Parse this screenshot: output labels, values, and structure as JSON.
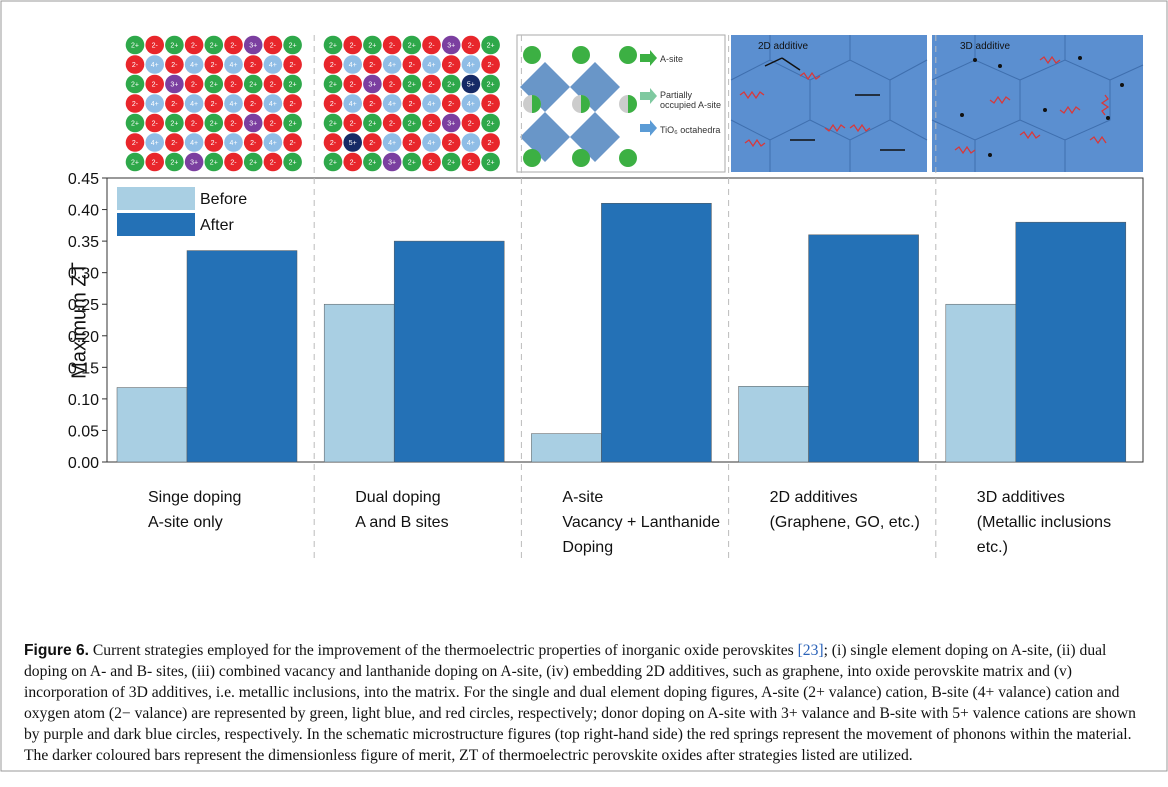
{
  "figure": {
    "lattices": [
      {
        "rows": [
          [
            "2+",
            "2-",
            "2+",
            "2-",
            "2+",
            "2-",
            "3+",
            "2-",
            "2+"
          ],
          [
            "2-",
            "4+",
            "2-",
            "4+",
            "2-",
            "4+",
            "2-",
            "4+",
            "2-"
          ],
          [
            "2+",
            "2-",
            "3+",
            "2-",
            "2+",
            "2-",
            "2+",
            "2-",
            "2+"
          ],
          [
            "2-",
            "4+",
            "2-",
            "4+",
            "2-",
            "4+",
            "2-",
            "4+",
            "2-"
          ],
          [
            "2+",
            "2-",
            "2+",
            "2-",
            "2+",
            "2-",
            "3+",
            "2-",
            "2+"
          ],
          [
            "2-",
            "4+",
            "2-",
            "4+",
            "2-",
            "4+",
            "2-",
            "4+",
            "2-"
          ],
          [
            "2+",
            "2-",
            "2+",
            "3+",
            "2+",
            "2-",
            "2+",
            "2-",
            "2+"
          ]
        ]
      },
      {
        "rows": [
          [
            "2+",
            "2-",
            "2+",
            "2-",
            "2+",
            "2-",
            "3+",
            "2-",
            "2+"
          ],
          [
            "2-",
            "4+",
            "2-",
            "4+",
            "2-",
            "4+",
            "2-",
            "4+",
            "2-"
          ],
          [
            "2+",
            "2-",
            "3+",
            "2-",
            "2+",
            "2-",
            "2+",
            "5+",
            "2+"
          ],
          [
            "2-",
            "4+",
            "2-",
            "4+",
            "2-",
            "4+",
            "2-",
            "4+",
            "2-"
          ],
          [
            "2+",
            "2-",
            "2+",
            "2-",
            "2+",
            "2-",
            "3+",
            "2-",
            "2+"
          ],
          [
            "2-",
            "5+",
            "2-",
            "4+",
            "2-",
            "4+",
            "2-",
            "4+",
            "2-"
          ],
          [
            "2+",
            "2-",
            "2+",
            "3+",
            "2+",
            "2-",
            "2+",
            "2-",
            "2+"
          ]
        ]
      }
    ],
    "perovskite_legend": [
      "A-site",
      "Partially occupied A-site",
      "TiO₆ octahedra"
    ],
    "additive_labels": [
      "2D additive",
      "3D additive"
    ]
  },
  "chart_data": {
    "type": "bar",
    "categories": [
      "Singe doping\nA-site only",
      "Dual doping\nA and B sites",
      "A-site\nVacancy + Lanthanide\nDoping",
      "2D additives\n(Graphene, GO, etc.)",
      "3D additives\n(Metallic inclusions\netc.)"
    ],
    "series": [
      {
        "name": "Before",
        "color": "#a9cfe3",
        "values": [
          0.118,
          0.25,
          0.045,
          0.12,
          0.25
        ]
      },
      {
        "name": "After",
        "color": "#2471b6",
        "values": [
          0.335,
          0.35,
          0.41,
          0.36,
          0.38
        ]
      }
    ],
    "y_label": "Maximum ZT",
    "ylim": [
      0,
      0.45
    ],
    "yticks": [
      {
        "value": 0,
        "label": "0.00"
      },
      0.05,
      {
        "value": 0.1,
        "label": "0.10"
      },
      0.15,
      {
        "value": 0.2,
        "label": "0.20"
      },
      0.25,
      {
        "value": 0.3,
        "label": "0.30"
      },
      0.35,
      {
        "value": 0.4,
        "label": "0.40"
      },
      0.45
    ],
    "legend": "top-left"
  },
  "caption": {
    "label": "Figure 6.",
    "text_before": "Current strategies employed for the improvement of the thermoelectric properties of inorganic oxide perovskites ",
    "ref": "[23]",
    "text_after": "; (i) single element doping on A-site, (ii) dual doping on A- and B- sites, (iii) combined vacancy and lanthanide doping on A-site, (iv) embedding 2D additives, such as graphene, into oxide perovskite matrix and (v) incorporation of 3D additives, i.e. metallic inclusions, into the matrix. For the single and dual element doping figures, A-site (2+ valance) cation, B-site (4+ valance) cation and oxygen atom (2− valance) are represented by green, light blue, and red circles, respectively; donor doping on A-site with 3+ valance and B-site with 5+ valence cations are shown by purple and dark blue circles, respectively. In the schematic microstructure figures (top right-hand side) the red springs represent the movement of phonons within the material. The darker coloured bars represent the dimensionless figure of merit, ZT of thermoelectric perovskite oxides after strategies listed are utilized."
  }
}
